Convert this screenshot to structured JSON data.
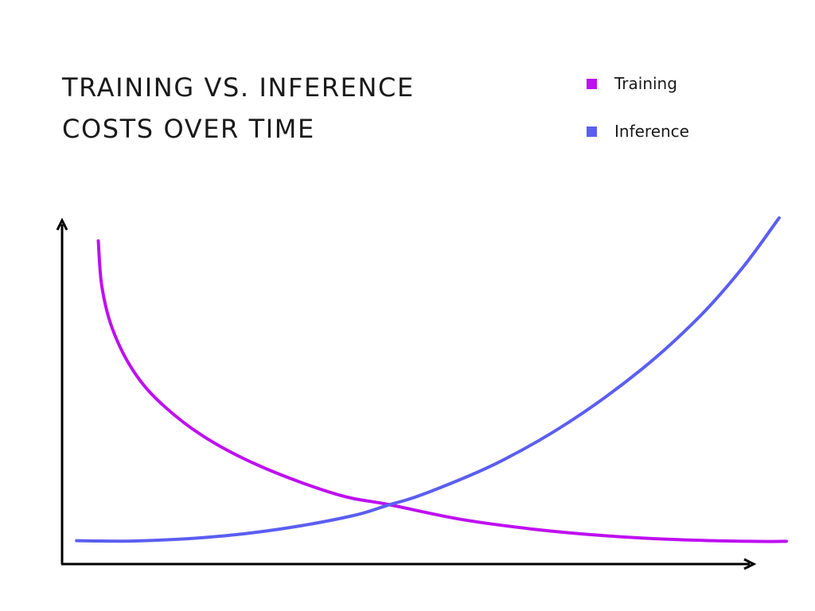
{
  "chart_data": {
    "type": "line",
    "title": "TRAINING VS. INFERENCE\nCOSTS OVER TIME",
    "xlabel": "",
    "ylabel": "",
    "grid": false,
    "axis_ticks": false,
    "legend_placement": "top-right",
    "xlim": [
      0,
      100
    ],
    "ylim": [
      0,
      100
    ],
    "series": [
      {
        "name": "Training",
        "color": "#be10f0",
        "x": [
          5,
          5.5,
          7,
          10,
          14,
          20,
          28,
          38,
          45,
          55,
          65,
          75,
          85,
          95,
          100
        ],
        "y": [
          94,
          80,
          67,
          54,
          44,
          34,
          25,
          17,
          14,
          9.5,
          6.5,
          4.5,
          3.3,
          2.8,
          2.8
        ]
      },
      {
        "name": "Inference",
        "color": "#5b5ef0",
        "x": [
          2,
          10,
          20,
          30,
          40,
          45,
          50,
          60,
          70,
          80,
          88,
          94,
          99
        ],
        "y": [
          3.0,
          2.9,
          4.0,
          6.5,
          10.5,
          13.8,
          17.2,
          26.5,
          39,
          55,
          71,
          86,
          101
        ]
      }
    ]
  }
}
